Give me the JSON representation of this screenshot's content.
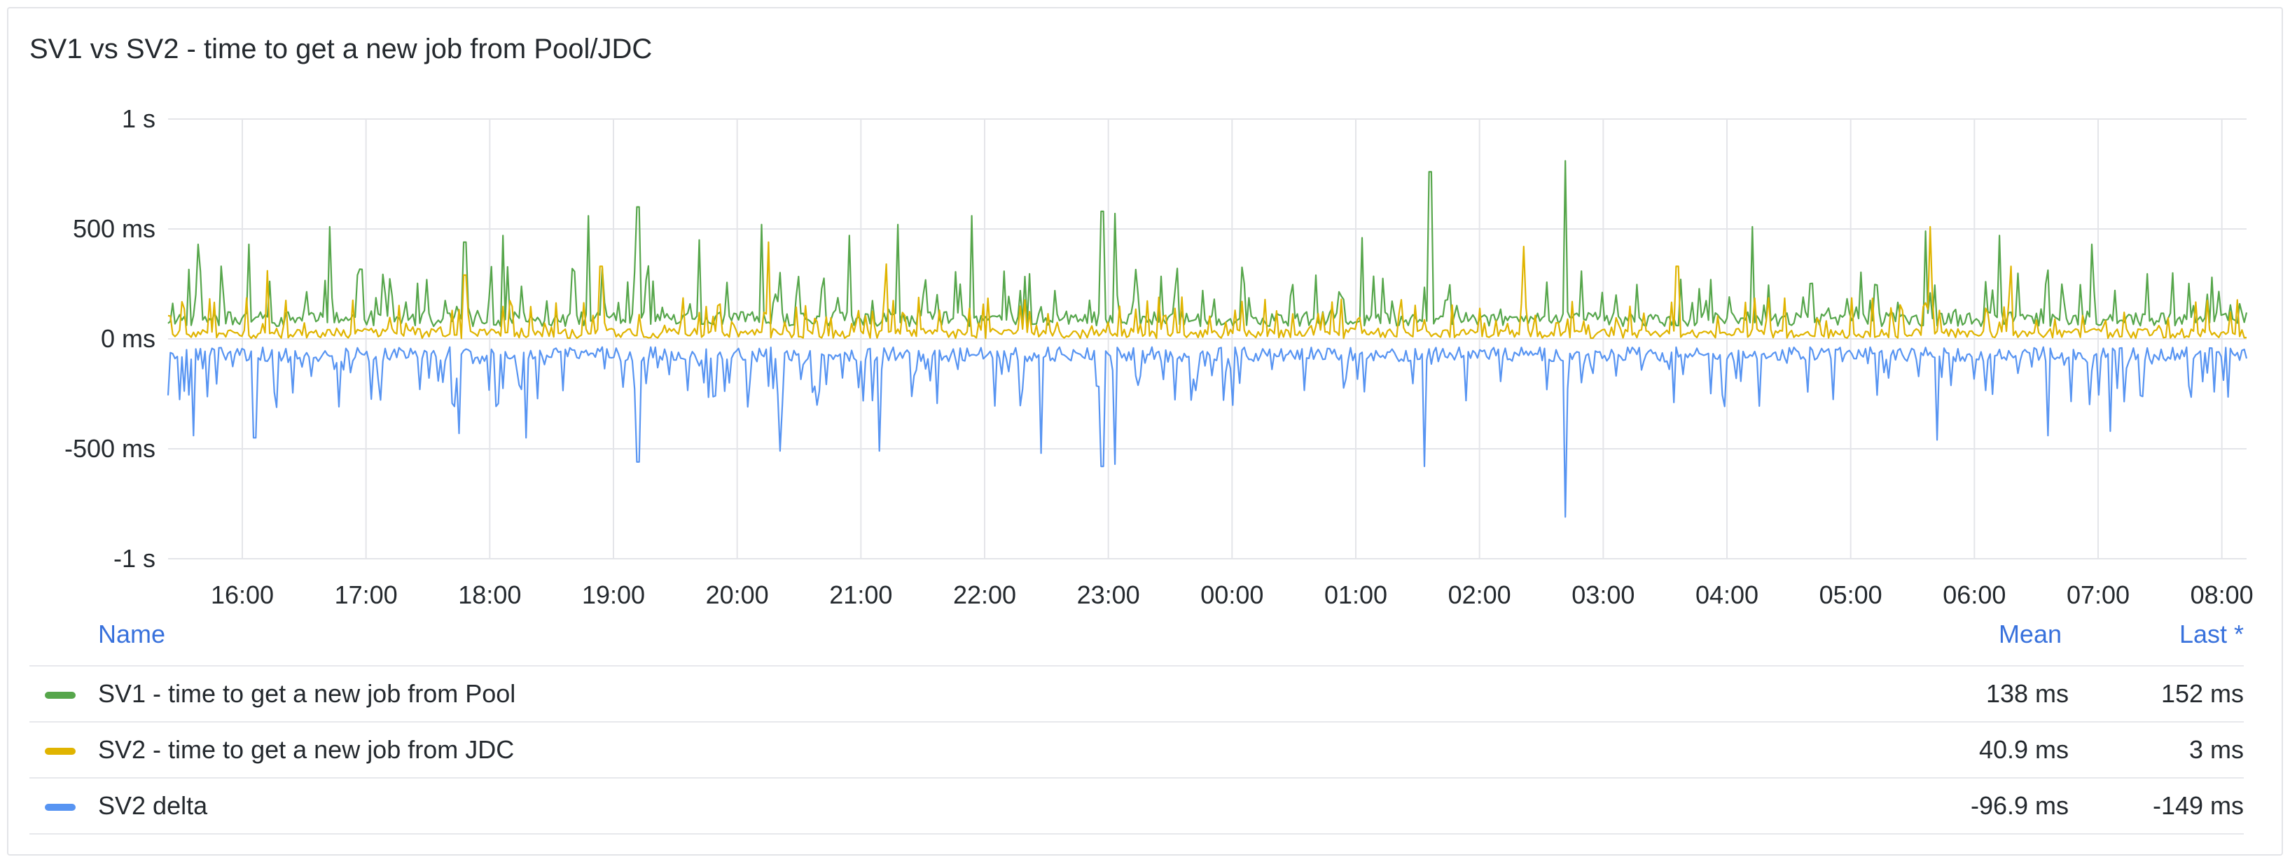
{
  "panel": {
    "title": "SV1 vs SV2 - time to get a new job from Pool/JDC"
  },
  "legend": {
    "headers": {
      "name": "Name",
      "mean": "Mean",
      "last": "Last *"
    },
    "rows": [
      {
        "name": "SV1 - time to get a new job from Pool",
        "mean": "138 ms",
        "last": "152 ms",
        "color": "#56a64b"
      },
      {
        "name": "SV2 - time to get a new job from JDC",
        "mean": "40.9 ms",
        "last": "3 ms",
        "color": "#e0b400"
      },
      {
        "name": "SV2 delta",
        "mean": "-96.9 ms",
        "last": "-149 ms",
        "color": "#5794f2"
      }
    ]
  },
  "chart_data": {
    "type": "line",
    "y_ticks": [
      "1 s",
      "500 ms",
      "0 ms",
      "-500 ms",
      "-1 s"
    ],
    "y_tick_values": [
      1000,
      500,
      0,
      -500,
      -1000
    ],
    "ylim": [
      -1000,
      1000
    ],
    "x_ticks": [
      "16:00",
      "17:00",
      "18:00",
      "19:00",
      "20:00",
      "21:00",
      "22:00",
      "23:00",
      "00:00",
      "01:00",
      "02:00",
      "03:00",
      "04:00",
      "05:00",
      "06:00",
      "07:00",
      "08:00"
    ],
    "x_hours": [
      0.4,
      17.2
    ],
    "grid": true,
    "legend_placement": "bottom",
    "series": [
      {
        "name": "SV1 - time to get a new job from Pool",
        "color": "#56a64b",
        "baseline": 90,
        "noise": 110,
        "spikes": [
          [
            0.65,
            430
          ],
          [
            1.05,
            430
          ],
          [
            1.7,
            510
          ],
          [
            2.8,
            440
          ],
          [
            3.1,
            470
          ],
          [
            3.8,
            560
          ],
          [
            4.2,
            600
          ],
          [
            4.7,
            450
          ],
          [
            5.2,
            520
          ],
          [
            5.9,
            470
          ],
          [
            6.3,
            520
          ],
          [
            6.9,
            560
          ],
          [
            7.95,
            580
          ],
          [
            8.05,
            570
          ],
          [
            10.05,
            460
          ],
          [
            10.6,
            760
          ],
          [
            11.7,
            810
          ],
          [
            13.2,
            510
          ],
          [
            14.6,
            490
          ],
          [
            15.2,
            470
          ],
          [
            15.95,
            430
          ]
        ]
      },
      {
        "name": "SV2 - time to get a new job from JDC",
        "color": "#e0b400",
        "baseline": 25,
        "noise": 75,
        "spikes": [
          [
            1.2,
            310
          ],
          [
            2.8,
            290
          ],
          [
            3.9,
            330
          ],
          [
            5.25,
            440
          ],
          [
            6.2,
            340
          ],
          [
            11.35,
            420
          ],
          [
            12.6,
            330
          ],
          [
            14.65,
            510
          ],
          [
            15.3,
            330
          ]
        ]
      },
      {
        "name": "SV2 delta",
        "color": "#5794f2",
        "baseline": -70,
        "noise": 110,
        "spikes": [
          [
            0.6,
            -440
          ],
          [
            1.1,
            -450
          ],
          [
            2.75,
            -430
          ],
          [
            3.3,
            -450
          ],
          [
            4.2,
            -560
          ],
          [
            5.35,
            -510
          ],
          [
            6.15,
            -510
          ],
          [
            7.45,
            -520
          ],
          [
            7.95,
            -580
          ],
          [
            8.05,
            -570
          ],
          [
            10.55,
            -580
          ],
          [
            11.7,
            -810
          ],
          [
            14.7,
            -460
          ],
          [
            15.6,
            -440
          ],
          [
            16.1,
            -420
          ]
        ]
      }
    ]
  }
}
